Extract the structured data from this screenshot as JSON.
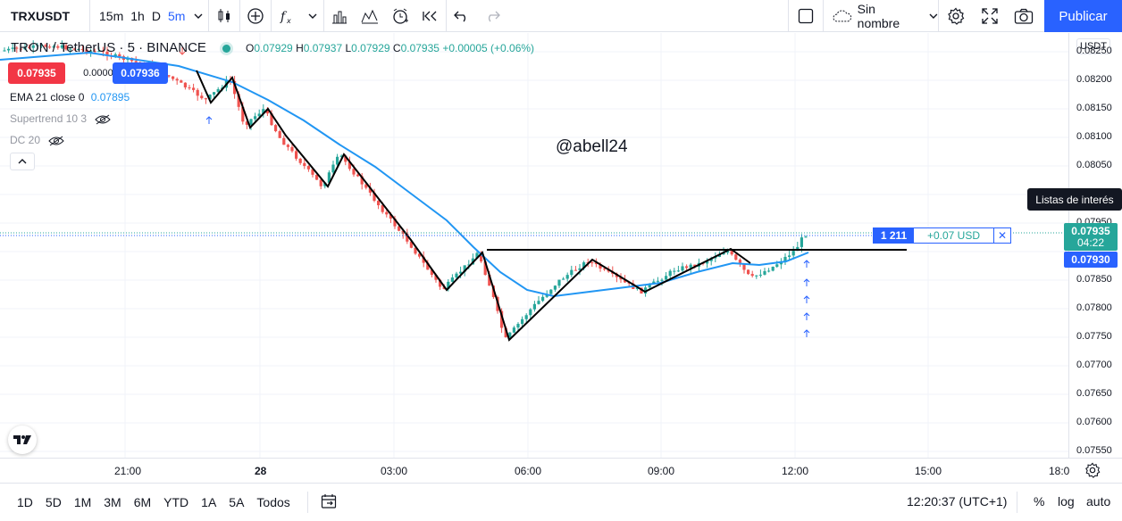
{
  "toolbar": {
    "symbol": "TRXUSDT",
    "timeframes": [
      "15m",
      "1h",
      "D",
      "5m"
    ],
    "layout_name": "Sin nombre",
    "publish_label": "Publicar"
  },
  "legend": {
    "title": "TRON / TetherUS · 5 · BINANCE",
    "open_label": "O",
    "open": "0.07929",
    "high_label": "H",
    "high": "0.07937",
    "low_label": "L",
    "low": "0.07929",
    "close_label": "C",
    "close": "0.07935",
    "change": "+0.00005 (+0.06%)",
    "sell_price": "0.07935",
    "spread": "0.00001",
    "buy_price": "0.07936",
    "ema_label": "EMA 21 close 0",
    "ema_value": "0.07895",
    "supertrend_label": "Supertrend 10 3",
    "dc_label": "DC 20"
  },
  "watermark": "@abell24",
  "price_axis": {
    "currency": "USDT",
    "ticks": [
      "0.08250",
      "0.08200",
      "0.08150",
      "0.08100",
      "0.08050",
      "0.07950",
      "0.07850",
      "0.07800",
      "0.07750",
      "0.07700",
      "0.07650",
      "0.07600",
      "0.07550"
    ],
    "tooltip": "Listas de interés",
    "last_price": "0.07935",
    "countdown": "04:22",
    "ema_tag": "0.07930"
  },
  "position_line": {
    "quantity": "1 211",
    "pnl": "+0.07 USD",
    "close": "✕"
  },
  "time_axis": {
    "ticks": [
      "21:00",
      "28",
      "03:00",
      "06:00",
      "09:00",
      "12:00",
      "15:00",
      "18:0"
    ]
  },
  "bottom_bar": {
    "ranges": [
      "1D",
      "5D",
      "1M",
      "3M",
      "6M",
      "YTD",
      "1A",
      "5A",
      "Todos"
    ],
    "clock": "12:20:37 (UTC+1)",
    "percent": "%",
    "log": "log",
    "auto": "auto"
  },
  "colors": {
    "up": "#26a69a",
    "down": "#ef5350",
    "ema": "#2196f3",
    "accent": "#2962ff"
  }
}
